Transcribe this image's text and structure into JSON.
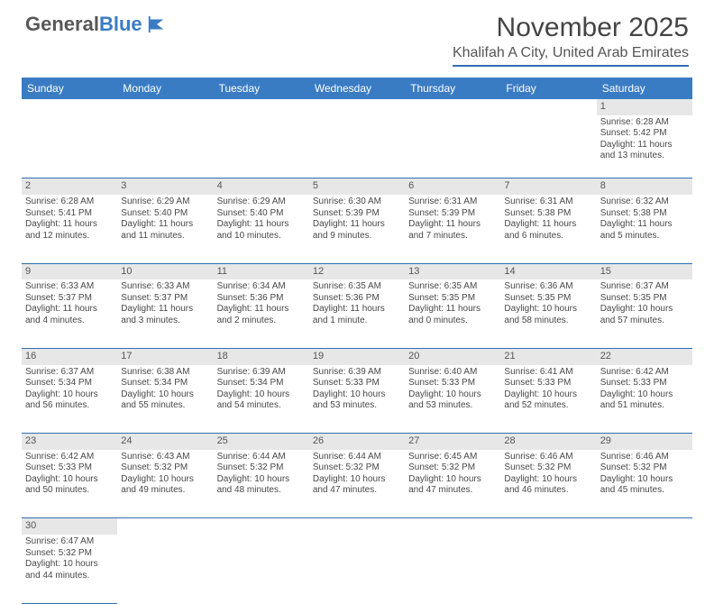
{
  "logo": {
    "primary": "General",
    "secondary": "Blue"
  },
  "title": "November 2025",
  "subtitle": "Khalifah A City, United Arab Emirates",
  "colors": {
    "header_bg": "#3a7cc4",
    "header_text": "#ffffff",
    "daynum_bg": "#e7e7e7",
    "border": "#2f6fb3",
    "text": "#484848",
    "logo_blue": "#3a7cc4"
  },
  "weekdays": [
    "Sunday",
    "Monday",
    "Tuesday",
    "Wednesday",
    "Thursday",
    "Friday",
    "Saturday"
  ],
  "rows": [
    {
      "nums": [
        "",
        "",
        "",
        "",
        "",
        "",
        "1"
      ],
      "cells": [
        null,
        null,
        null,
        null,
        null,
        null,
        {
          "sr": "Sunrise: 6:28 AM",
          "ss": "Sunset: 5:42 PM",
          "d1": "Daylight: 11 hours",
          "d2": "and 13 minutes."
        }
      ]
    },
    {
      "nums": [
        "2",
        "3",
        "4",
        "5",
        "6",
        "7",
        "8"
      ],
      "cells": [
        {
          "sr": "Sunrise: 6:28 AM",
          "ss": "Sunset: 5:41 PM",
          "d1": "Daylight: 11 hours",
          "d2": "and 12 minutes."
        },
        {
          "sr": "Sunrise: 6:29 AM",
          "ss": "Sunset: 5:40 PM",
          "d1": "Daylight: 11 hours",
          "d2": "and 11 minutes."
        },
        {
          "sr": "Sunrise: 6:29 AM",
          "ss": "Sunset: 5:40 PM",
          "d1": "Daylight: 11 hours",
          "d2": "and 10 minutes."
        },
        {
          "sr": "Sunrise: 6:30 AM",
          "ss": "Sunset: 5:39 PM",
          "d1": "Daylight: 11 hours",
          "d2": "and 9 minutes."
        },
        {
          "sr": "Sunrise: 6:31 AM",
          "ss": "Sunset: 5:39 PM",
          "d1": "Daylight: 11 hours",
          "d2": "and 7 minutes."
        },
        {
          "sr": "Sunrise: 6:31 AM",
          "ss": "Sunset: 5:38 PM",
          "d1": "Daylight: 11 hours",
          "d2": "and 6 minutes."
        },
        {
          "sr": "Sunrise: 6:32 AM",
          "ss": "Sunset: 5:38 PM",
          "d1": "Daylight: 11 hours",
          "d2": "and 5 minutes."
        }
      ]
    },
    {
      "nums": [
        "9",
        "10",
        "11",
        "12",
        "13",
        "14",
        "15"
      ],
      "cells": [
        {
          "sr": "Sunrise: 6:33 AM",
          "ss": "Sunset: 5:37 PM",
          "d1": "Daylight: 11 hours",
          "d2": "and 4 minutes."
        },
        {
          "sr": "Sunrise: 6:33 AM",
          "ss": "Sunset: 5:37 PM",
          "d1": "Daylight: 11 hours",
          "d2": "and 3 minutes."
        },
        {
          "sr": "Sunrise: 6:34 AM",
          "ss": "Sunset: 5:36 PM",
          "d1": "Daylight: 11 hours",
          "d2": "and 2 minutes."
        },
        {
          "sr": "Sunrise: 6:35 AM",
          "ss": "Sunset: 5:36 PM",
          "d1": "Daylight: 11 hours",
          "d2": "and 1 minute."
        },
        {
          "sr": "Sunrise: 6:35 AM",
          "ss": "Sunset: 5:35 PM",
          "d1": "Daylight: 11 hours",
          "d2": "and 0 minutes."
        },
        {
          "sr": "Sunrise: 6:36 AM",
          "ss": "Sunset: 5:35 PM",
          "d1": "Daylight: 10 hours",
          "d2": "and 58 minutes."
        },
        {
          "sr": "Sunrise: 6:37 AM",
          "ss": "Sunset: 5:35 PM",
          "d1": "Daylight: 10 hours",
          "d2": "and 57 minutes."
        }
      ]
    },
    {
      "nums": [
        "16",
        "17",
        "18",
        "19",
        "20",
        "21",
        "22"
      ],
      "cells": [
        {
          "sr": "Sunrise: 6:37 AM",
          "ss": "Sunset: 5:34 PM",
          "d1": "Daylight: 10 hours",
          "d2": "and 56 minutes."
        },
        {
          "sr": "Sunrise: 6:38 AM",
          "ss": "Sunset: 5:34 PM",
          "d1": "Daylight: 10 hours",
          "d2": "and 55 minutes."
        },
        {
          "sr": "Sunrise: 6:39 AM",
          "ss": "Sunset: 5:34 PM",
          "d1": "Daylight: 10 hours",
          "d2": "and 54 minutes."
        },
        {
          "sr": "Sunrise: 6:39 AM",
          "ss": "Sunset: 5:33 PM",
          "d1": "Daylight: 10 hours",
          "d2": "and 53 minutes."
        },
        {
          "sr": "Sunrise: 6:40 AM",
          "ss": "Sunset: 5:33 PM",
          "d1": "Daylight: 10 hours",
          "d2": "and 53 minutes."
        },
        {
          "sr": "Sunrise: 6:41 AM",
          "ss": "Sunset: 5:33 PM",
          "d1": "Daylight: 10 hours",
          "d2": "and 52 minutes."
        },
        {
          "sr": "Sunrise: 6:42 AM",
          "ss": "Sunset: 5:33 PM",
          "d1": "Daylight: 10 hours",
          "d2": "and 51 minutes."
        }
      ]
    },
    {
      "nums": [
        "23",
        "24",
        "25",
        "26",
        "27",
        "28",
        "29"
      ],
      "cells": [
        {
          "sr": "Sunrise: 6:42 AM",
          "ss": "Sunset: 5:33 PM",
          "d1": "Daylight: 10 hours",
          "d2": "and 50 minutes."
        },
        {
          "sr": "Sunrise: 6:43 AM",
          "ss": "Sunset: 5:32 PM",
          "d1": "Daylight: 10 hours",
          "d2": "and 49 minutes."
        },
        {
          "sr": "Sunrise: 6:44 AM",
          "ss": "Sunset: 5:32 PM",
          "d1": "Daylight: 10 hours",
          "d2": "and 48 minutes."
        },
        {
          "sr": "Sunrise: 6:44 AM",
          "ss": "Sunset: 5:32 PM",
          "d1": "Daylight: 10 hours",
          "d2": "and 47 minutes."
        },
        {
          "sr": "Sunrise: 6:45 AM",
          "ss": "Sunset: 5:32 PM",
          "d1": "Daylight: 10 hours",
          "d2": "and 47 minutes."
        },
        {
          "sr": "Sunrise: 6:46 AM",
          "ss": "Sunset: 5:32 PM",
          "d1": "Daylight: 10 hours",
          "d2": "and 46 minutes."
        },
        {
          "sr": "Sunrise: 6:46 AM",
          "ss": "Sunset: 5:32 PM",
          "d1": "Daylight: 10 hours",
          "d2": "and 45 minutes."
        }
      ]
    },
    {
      "nums": [
        "30",
        "",
        "",
        "",
        "",
        "",
        ""
      ],
      "cells": [
        {
          "sr": "Sunrise: 6:47 AM",
          "ss": "Sunset: 5:32 PM",
          "d1": "Daylight: 10 hours",
          "d2": "and 44 minutes."
        },
        null,
        null,
        null,
        null,
        null,
        null
      ]
    }
  ]
}
